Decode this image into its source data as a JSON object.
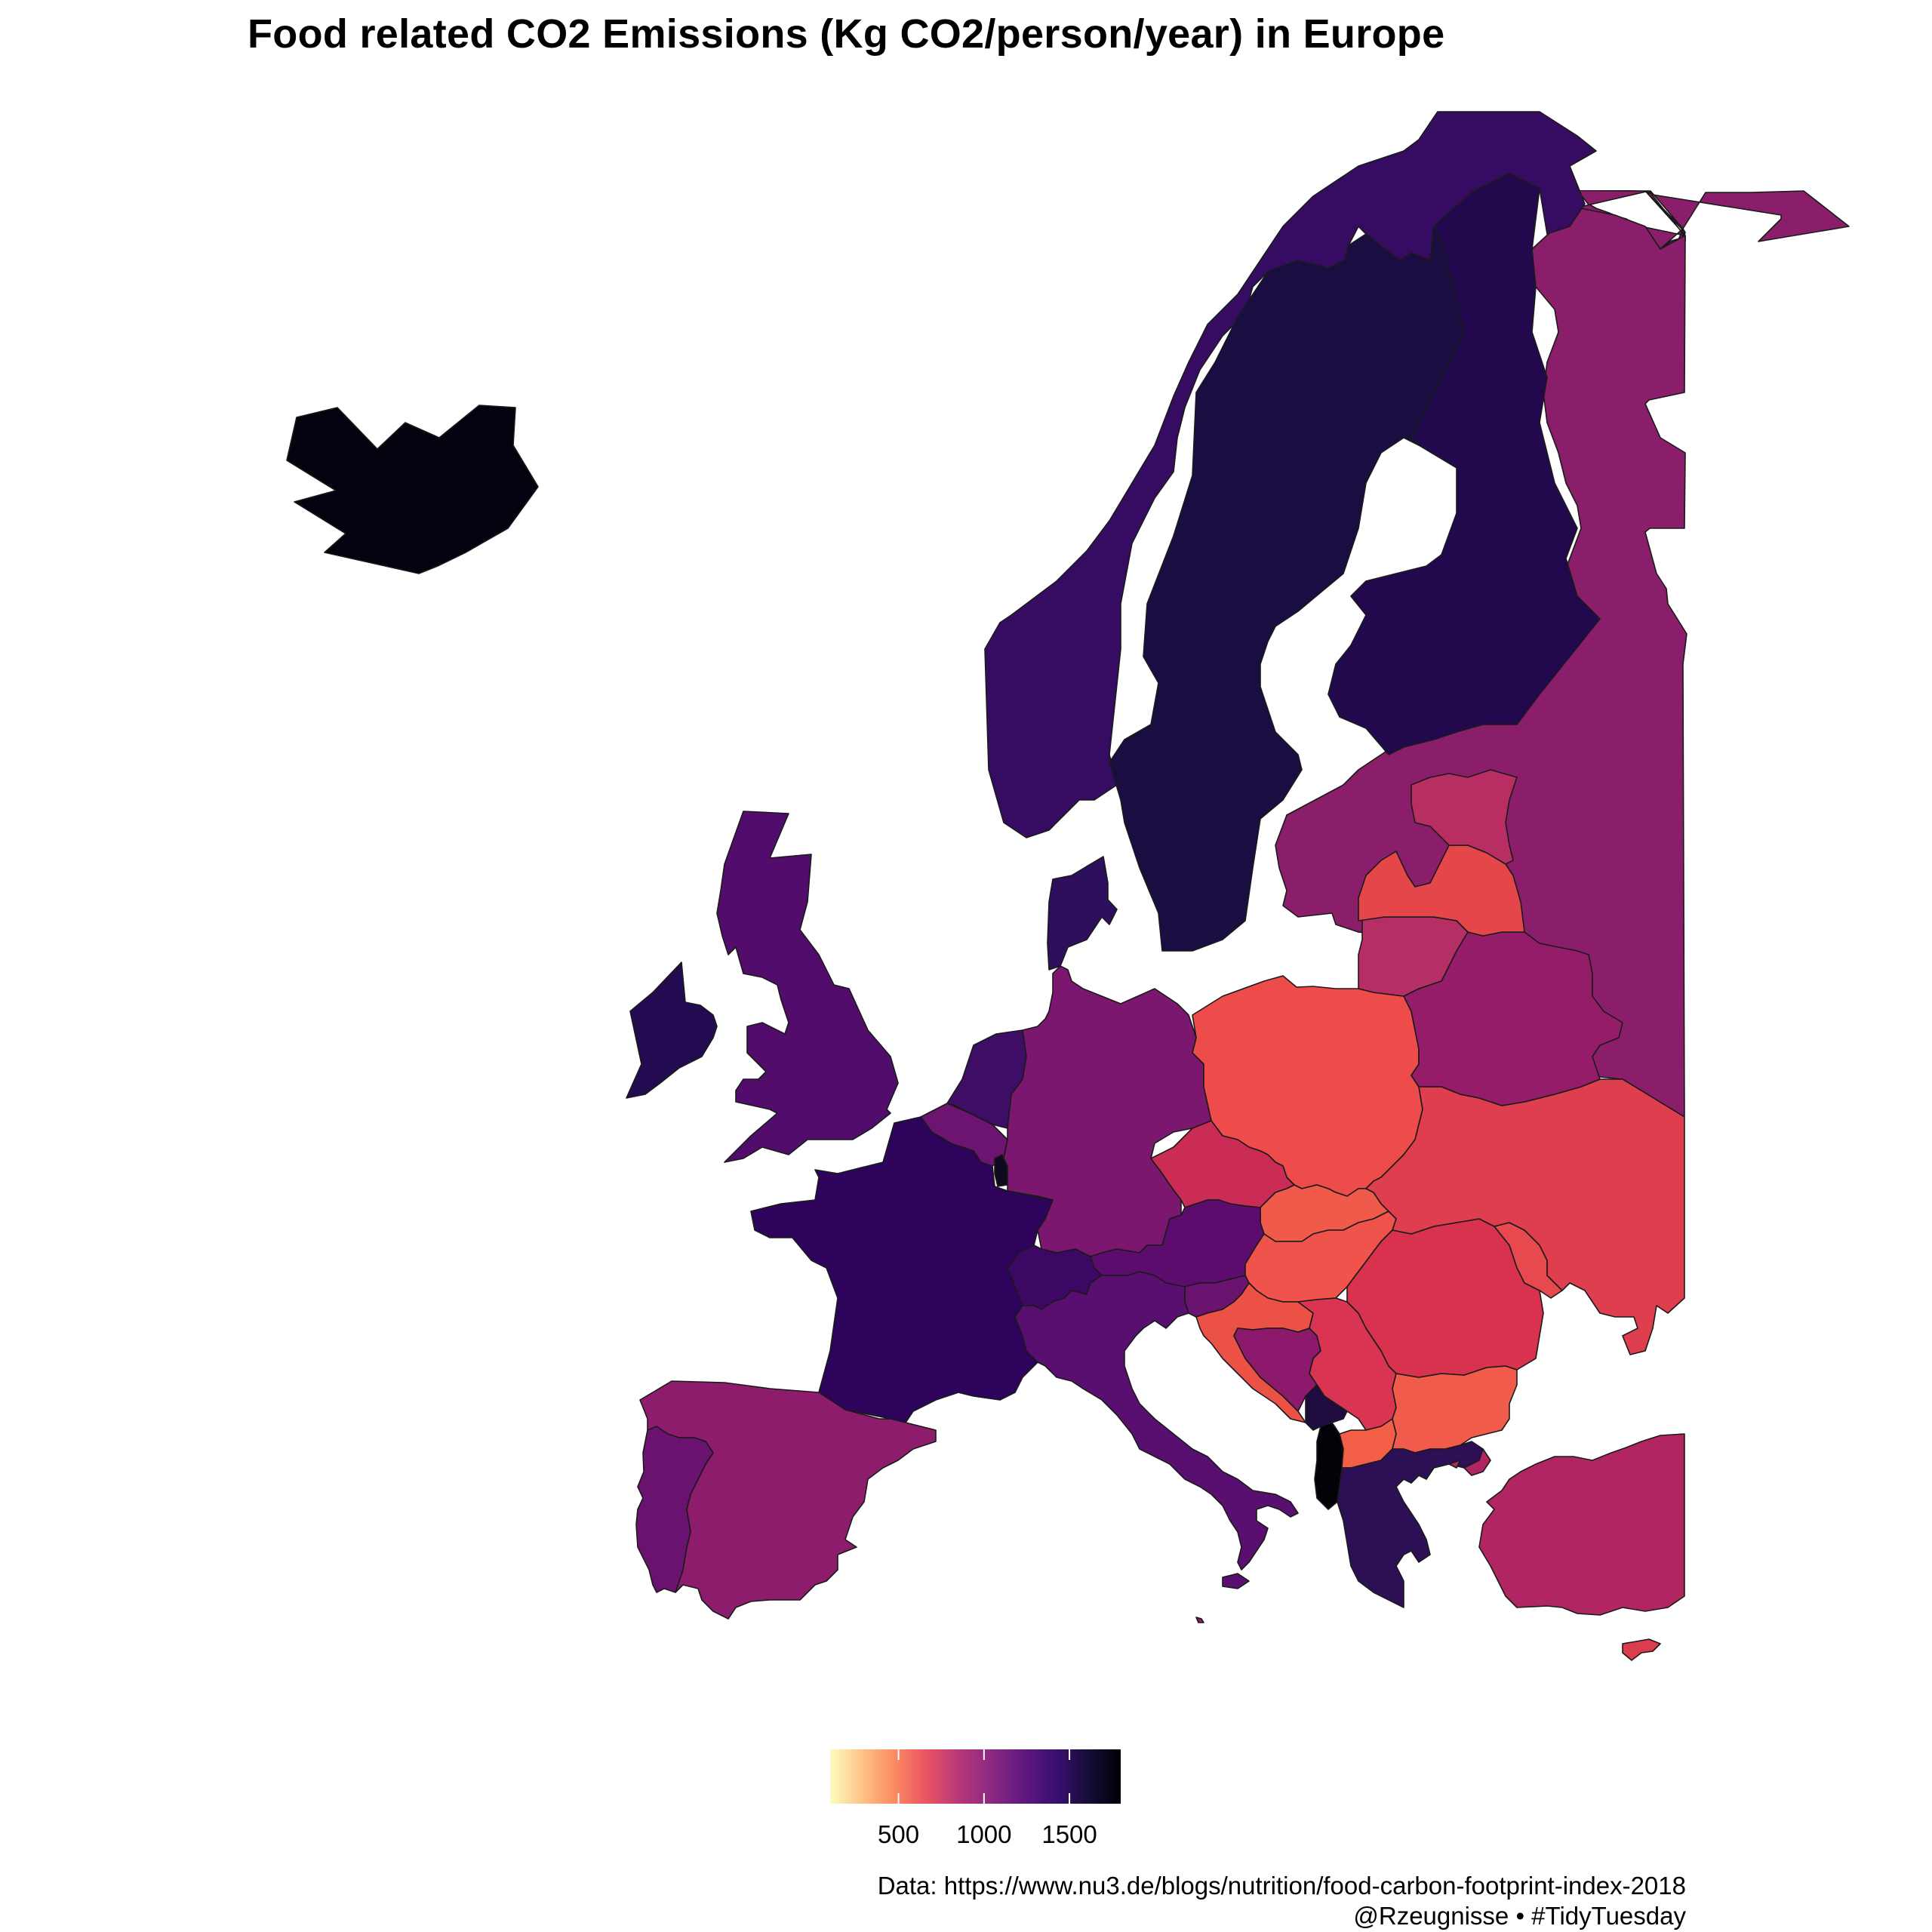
{
  "title": "Food related CO2 Emissions (Kg CO2/person/year) in Europe",
  "legend": {
    "palette": [
      "#FCFDBF",
      "#FEC287",
      "#FC8961",
      "#E85362",
      "#B73779",
      "#8C2981",
      "#5F187F",
      "#3B0F70",
      "#150E37",
      "#000004"
    ],
    "min": 100,
    "max": 1800,
    "ticks": [
      {
        "value": 500,
        "label": "500"
      },
      {
        "value": 1000,
        "label": "1000"
      },
      {
        "value": 1500,
        "label": "1500"
      }
    ]
  },
  "caption": {
    "line1": "Data: https://www.nu3.de/blogs/nutrition/food-carbon-footprint-index-2018",
    "line2": "@Rzeugnisse • #TidyTuesday"
  },
  "countries": [
    {
      "name": "Iceland",
      "color": "#03020E"
    },
    {
      "name": "Norway",
      "color": "#360C62"
    },
    {
      "name": "Sweden",
      "color": "#190D42"
    },
    {
      "name": "Finland",
      "color": "#22094D"
    },
    {
      "name": "Russia",
      "color": "#8A1E6A"
    },
    {
      "name": "Estonia",
      "color": "#B92E62"
    },
    {
      "name": "Latvia",
      "color": "#E4464A"
    },
    {
      "name": "Lithuania",
      "color": "#B52F64"
    },
    {
      "name": "Belarus",
      "color": "#951C69"
    },
    {
      "name": "Ukraine",
      "color": "#DF3E4F"
    },
    {
      "name": "Moldova",
      "color": "#E64A4E"
    },
    {
      "name": "United Kingdom",
      "color": "#520C6B"
    },
    {
      "name": "Ireland",
      "color": "#230B52"
    },
    {
      "name": "Denmark",
      "color": "#2E0F5E"
    },
    {
      "name": "Netherlands",
      "color": "#3E0E67"
    },
    {
      "name": "Belgium",
      "color": "#6C1470"
    },
    {
      "name": "Luxembourg",
      "color": "#0E0A1E"
    },
    {
      "name": "France",
      "color": "#2D035C"
    },
    {
      "name": "Germany",
      "color": "#7B176E"
    },
    {
      "name": "Poland",
      "color": "#EE4C4A"
    },
    {
      "name": "Czechia",
      "color": "#CB2C56"
    },
    {
      "name": "Slovakia",
      "color": "#F05A4A"
    },
    {
      "name": "Austria",
      "color": "#5C0C6C"
    },
    {
      "name": "Switzerland",
      "color": "#3C0863"
    },
    {
      "name": "Hungary",
      "color": "#F0534B"
    },
    {
      "name": "Slovenia",
      "color": "#6C1370"
    },
    {
      "name": "Croatia",
      "color": "#EC5146"
    },
    {
      "name": "Bosnia and Herzegovina",
      "color": "#8C196C"
    },
    {
      "name": "Serbia",
      "color": "#D93553"
    },
    {
      "name": "Montenegro",
      "color": "#1E0C40"
    },
    {
      "name": "Albania",
      "color": "#030208"
    },
    {
      "name": "North Macedonia",
      "color": "#F25E46"
    },
    {
      "name": "Greece",
      "color": "#2C0F55"
    },
    {
      "name": "Bulgaria",
      "color": "#F05B4C"
    },
    {
      "name": "Romania",
      "color": "#D8324F"
    },
    {
      "name": "Italy",
      "color": "#580F6F"
    },
    {
      "name": "Spain",
      "color": "#8E1C6D"
    },
    {
      "name": "Portugal",
      "color": "#6A1270"
    },
    {
      "name": "Turkey",
      "color": "#B12662"
    },
    {
      "name": "Cyprus",
      "color": "#DB3C4E"
    },
    {
      "name": "Malta",
      "color": "#8E1C6D"
    }
  ]
}
